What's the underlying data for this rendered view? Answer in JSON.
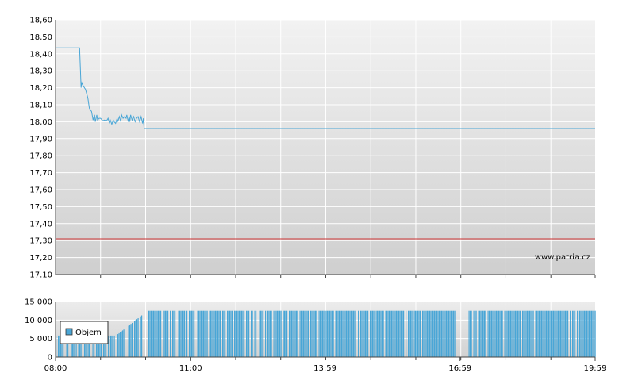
{
  "chart_data": [
    {
      "type": "line",
      "title": "",
      "xlabel": "",
      "ylabel": "",
      "ylim": [
        17.1,
        18.6
      ],
      "yticks": [
        "18,60",
        "18,50",
        "18,40",
        "18,30",
        "18,20",
        "18,10",
        "18,00",
        "17,90",
        "17,80",
        "17,70",
        "17,60",
        "17,50",
        "17,40",
        "17,30",
        "17,20",
        "17.10"
      ],
      "x_range_minutes": [
        480,
        1199
      ],
      "grid": true,
      "reference_line": {
        "value": 17.31,
        "color": "#cc3333"
      },
      "series_color": "#4aa6d6",
      "watermark": "www.patria.cz",
      "x": [
        480,
        512,
        514,
        515,
        517,
        520,
        523,
        525,
        528,
        530,
        532,
        533,
        534,
        535,
        536,
        538,
        540,
        543,
        545,
        548,
        550,
        552,
        553,
        555,
        557,
        558,
        560,
        562,
        563,
        565,
        567,
        568,
        570,
        572,
        574,
        575,
        577,
        578,
        579,
        580,
        582,
        584,
        586,
        588,
        590,
        592,
        594,
        596,
        597,
        598,
        599,
        600,
        700,
        800,
        900,
        1000,
        1100,
        1199
      ],
      "y": [
        18.435,
        18.435,
        18.2,
        18.23,
        18.21,
        18.19,
        18.14,
        18.08,
        18.06,
        18.01,
        18.04,
        18.0,
        18.02,
        18.04,
        18.01,
        18.02,
        18.02,
        18.005,
        18.01,
        18.005,
        18.02,
        17.99,
        18.01,
        17.985,
        18.01,
        18.0,
        17.99,
        18.02,
        18.0,
        18.03,
        18.0,
        18.04,
        18.02,
        18.03,
        18.02,
        18.04,
        18.0,
        18.03,
        18.0,
        18.04,
        18.01,
        18.03,
        18.0,
        18.02,
        18.03,
        18.0,
        18.03,
        17.99,
        18.02,
        17.96,
        17.96,
        17.96,
        17.96,
        17.96,
        17.96,
        17.96,
        17.96,
        17.96
      ]
    },
    {
      "type": "bar",
      "title": "",
      "xlabel": "",
      "ylabel": "",
      "ylim": [
        0,
        15000
      ],
      "yticks": [
        "15 000",
        "10 000",
        "5 000",
        "0"
      ],
      "xticks": [
        "08:00",
        "11:00",
        "13:59",
        "16:59",
        "19:59"
      ],
      "xtick_minutes": [
        480,
        660,
        839,
        1019,
        1199
      ],
      "legend": {
        "label": "Objem",
        "placement": "left"
      },
      "series_color": "#4aa6d6",
      "segments": [
        {
          "from": 480,
          "to": 602,
          "ramp_from": 5800,
          "ramp_to": 12500,
          "ramp_start": 560,
          "density": 0.55
        },
        {
          "from": 602,
          "to": 730,
          "value": 12500,
          "density": 0.75
        },
        {
          "from": 730,
          "to": 1000,
          "value": 12500,
          "density": 0.88
        },
        {
          "from": 1000,
          "to": 1012,
          "value": 12500,
          "density": 1.0
        },
        {
          "from": 1012,
          "to": 1030,
          "value": 0,
          "density": 0
        },
        {
          "from": 1030,
          "to": 1199,
          "value": 12500,
          "density": 0.85
        }
      ]
    }
  ]
}
